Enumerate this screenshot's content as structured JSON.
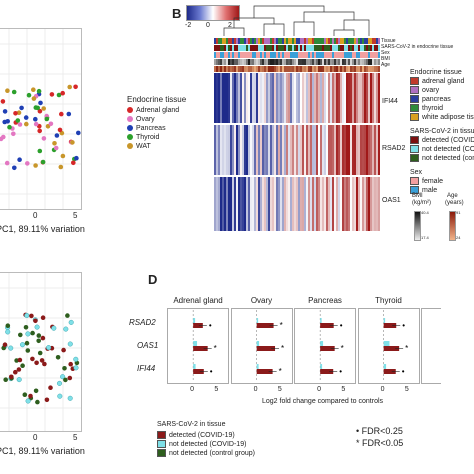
{
  "panels": {
    "b": "B",
    "d": "D"
  },
  "panel_a": {
    "xlabel": "PC1, 89.11% variation",
    "xticks": [
      "0",
      "5"
    ],
    "legend_title": "Endocrine tissue",
    "legend": [
      {
        "label": "Adrenal gland",
        "color": "#d62728"
      },
      {
        "label": "Ovary",
        "color": "#e377c2"
      },
      {
        "label": "Pancreas",
        "color": "#1f3fb4"
      },
      {
        "label": "Thyroid",
        "color": "#2ca02c"
      },
      {
        "label": "WAT",
        "color": "#c8962a"
      }
    ]
  },
  "panel_c": {
    "xlabel": "PC1, 89.11% variation",
    "xticks": [
      "0",
      "5"
    ]
  },
  "panel_b": {
    "colorbar_ticks": [
      "-2",
      "0",
      "2"
    ],
    "annotation_rows": [
      "Tissue",
      "SARS-CoV-2 in endocrine tissue",
      "Sex",
      "BMI",
      "Age"
    ],
    "genes": [
      "IFI44",
      "RSAD2",
      "OAS1"
    ],
    "legend": {
      "tissue_title": "Endocrine tissue",
      "tissue": [
        {
          "label": "adrenal gland",
          "color": "#c0392b"
        },
        {
          "label": "ovary",
          "color": "#b070c0"
        },
        {
          "label": "pancreas",
          "color": "#2c3e9e"
        },
        {
          "label": "thyroid",
          "color": "#2e8b3a"
        },
        {
          "label": "white adipose tissu",
          "color": "#d9a020"
        }
      ],
      "sars_title": "SARS-CoV-2 in tissues",
      "sars": [
        {
          "label": "detected (COVID-",
          "color": "#7b1010"
        },
        {
          "label": "not detected (COV",
          "color": "#7fe0e8"
        },
        {
          "label": "not detected (cont",
          "color": "#2e5e1e"
        }
      ],
      "sex_title": "Sex",
      "sex": [
        {
          "label": "female",
          "color": "#f2a0a0"
        },
        {
          "label": "male",
          "color": "#3aa0d8"
        }
      ],
      "bmi_label": "BMI",
      "bmi_unit": "(kg/m²)",
      "bmi_ticks": [
        "40.4",
        "17.4"
      ],
      "age_label": "Age",
      "age_unit": "(years)",
      "age_ticks": [
        "91",
        "24"
      ]
    }
  },
  "panel_d": {
    "tissues": [
      "Adrenal gland",
      "Ovary",
      "Pancreas",
      "Thyroid"
    ],
    "genes": [
      "RSAD2",
      "OAS1",
      "IFI44"
    ],
    "xticks": [
      "0",
      "5"
    ],
    "xlabel": "Log2 fold change compared to controls",
    "legend_title": "SARS-CoV-2 in tissue",
    "legend": [
      {
        "label": "detected (COVID-19)",
        "color": "#8b1a1a"
      },
      {
        "label": "not detected (COVID-19)",
        "color": "#7fe0e8"
      },
      {
        "label": "not detected (control group)",
        "color": "#2e5e1e"
      }
    ],
    "fdr": [
      {
        "symbol": "•",
        "label": "FDR<0.25"
      },
      {
        "symbol": "*",
        "label": "FDR<0.05"
      }
    ]
  },
  "chart_data": [
    {
      "type": "bar",
      "title": "",
      "xlabel": "Log2 fold change compared to controls",
      "categories": [
        "RSAD2",
        "OAS1",
        "IFI44"
      ],
      "panels": [
        "Adrenal gland",
        "Ovary",
        "Pancreas",
        "Thyroid"
      ],
      "series": [
        {
          "name": "detected (COVID-19)",
          "values_by_panel": [
            [
              2.0,
              3.0,
              2.2
            ],
            [
              3.5,
              3.8,
              3.3
            ],
            [
              2.8,
              3.0,
              2.7
            ],
            [
              2.6,
              3.2,
              2.5
            ]
          ]
        },
        {
          "name": "not detected (COVID-19)",
          "values_by_panel": [
            [
              0.4,
              0.8,
              0.5
            ],
            [
              0.3,
              0.5,
              0.4
            ],
            [
              0.3,
              0.6,
              0.4
            ],
            [
              0.3,
              1.2,
              0.5
            ]
          ]
        }
      ],
      "xlim": [
        -5,
        7
      ]
    }
  ]
}
